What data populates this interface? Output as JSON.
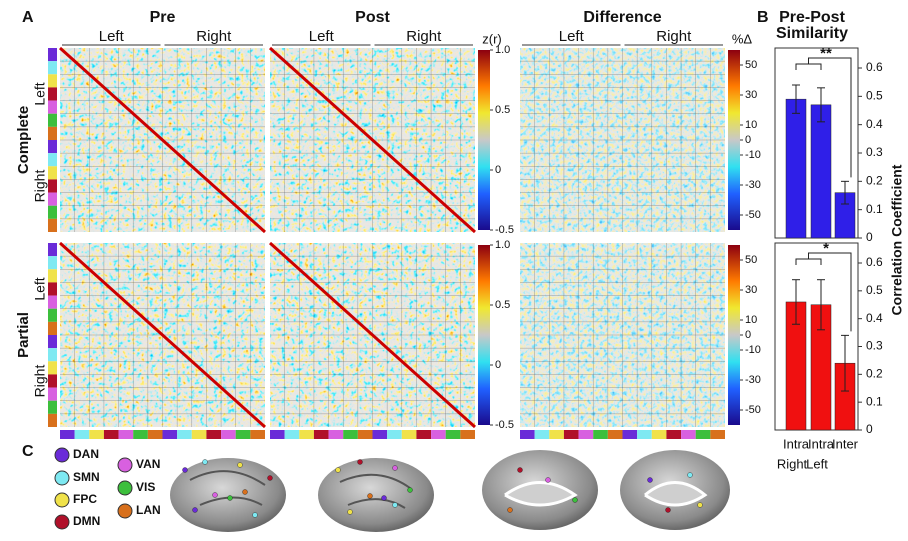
{
  "panel_labels": {
    "a": "A",
    "b": "B",
    "c": "C"
  },
  "panel_a": {
    "column_titles": [
      "Pre",
      "Post",
      "Difference"
    ],
    "hemisphere_headers": [
      "Left",
      "Right"
    ],
    "row_titles": [
      "Complete",
      "Partial"
    ],
    "row_hemispheres": [
      "Left",
      "Right"
    ],
    "zr_colorbar": {
      "label": "z(r)",
      "lim": [
        -0.5,
        1.0
      ],
      "ticks": [
        {
          "value": 1.0,
          "label": "1.0"
        },
        0.5,
        0,
        -0.5
      ]
    },
    "diff_colorbar": {
      "label": "%Δ",
      "lim": [
        -60,
        60
      ],
      "ticks": [
        50,
        30,
        10,
        0,
        -10,
        -30,
        -50
      ]
    }
  },
  "panel_b_title": [
    "Pre-Post",
    "Similarity"
  ],
  "chart_data": [
    {
      "type": "bar",
      "color": "#2f1fe8",
      "values": [
        0.49,
        0.47,
        0.16
      ],
      "errors": [
        0.05,
        0.06,
        0.04
      ],
      "ylim": [
        0,
        0.6
      ],
      "yticks": [
        0,
        0.1,
        0.2,
        0.3,
        0.4,
        0.5,
        0.6
      ],
      "ylabel": "Correlation Coefficient",
      "annotation": "**"
    },
    {
      "type": "bar",
      "color": "#f01010",
      "categories": [
        "Intra",
        "Intra",
        "Inter"
      ],
      "category_sublabels": [
        "Right",
        "Left",
        null
      ],
      "values": [
        0.46,
        0.45,
        0.24
      ],
      "errors": [
        0.08,
        0.09,
        0.1
      ],
      "ylim": [
        0,
        0.6
      ],
      "yticks": [
        0,
        0.1,
        0.2,
        0.3,
        0.4,
        0.5,
        0.6
      ],
      "annotation": "*"
    }
  ],
  "panel_c": {
    "networks": [
      {
        "name": "DAN",
        "color": "#6a2bd8"
      },
      {
        "name": "SMN",
        "color": "#7ee9f2"
      },
      {
        "name": "FPC",
        "color": "#f0e24a"
      },
      {
        "name": "DMN",
        "color": "#b0102a"
      },
      {
        "name": "VAN",
        "color": "#d860e0"
      },
      {
        "name": "VIS",
        "color": "#3cbf3c"
      },
      {
        "name": "LAN",
        "color": "#d8701c"
      }
    ]
  }
}
